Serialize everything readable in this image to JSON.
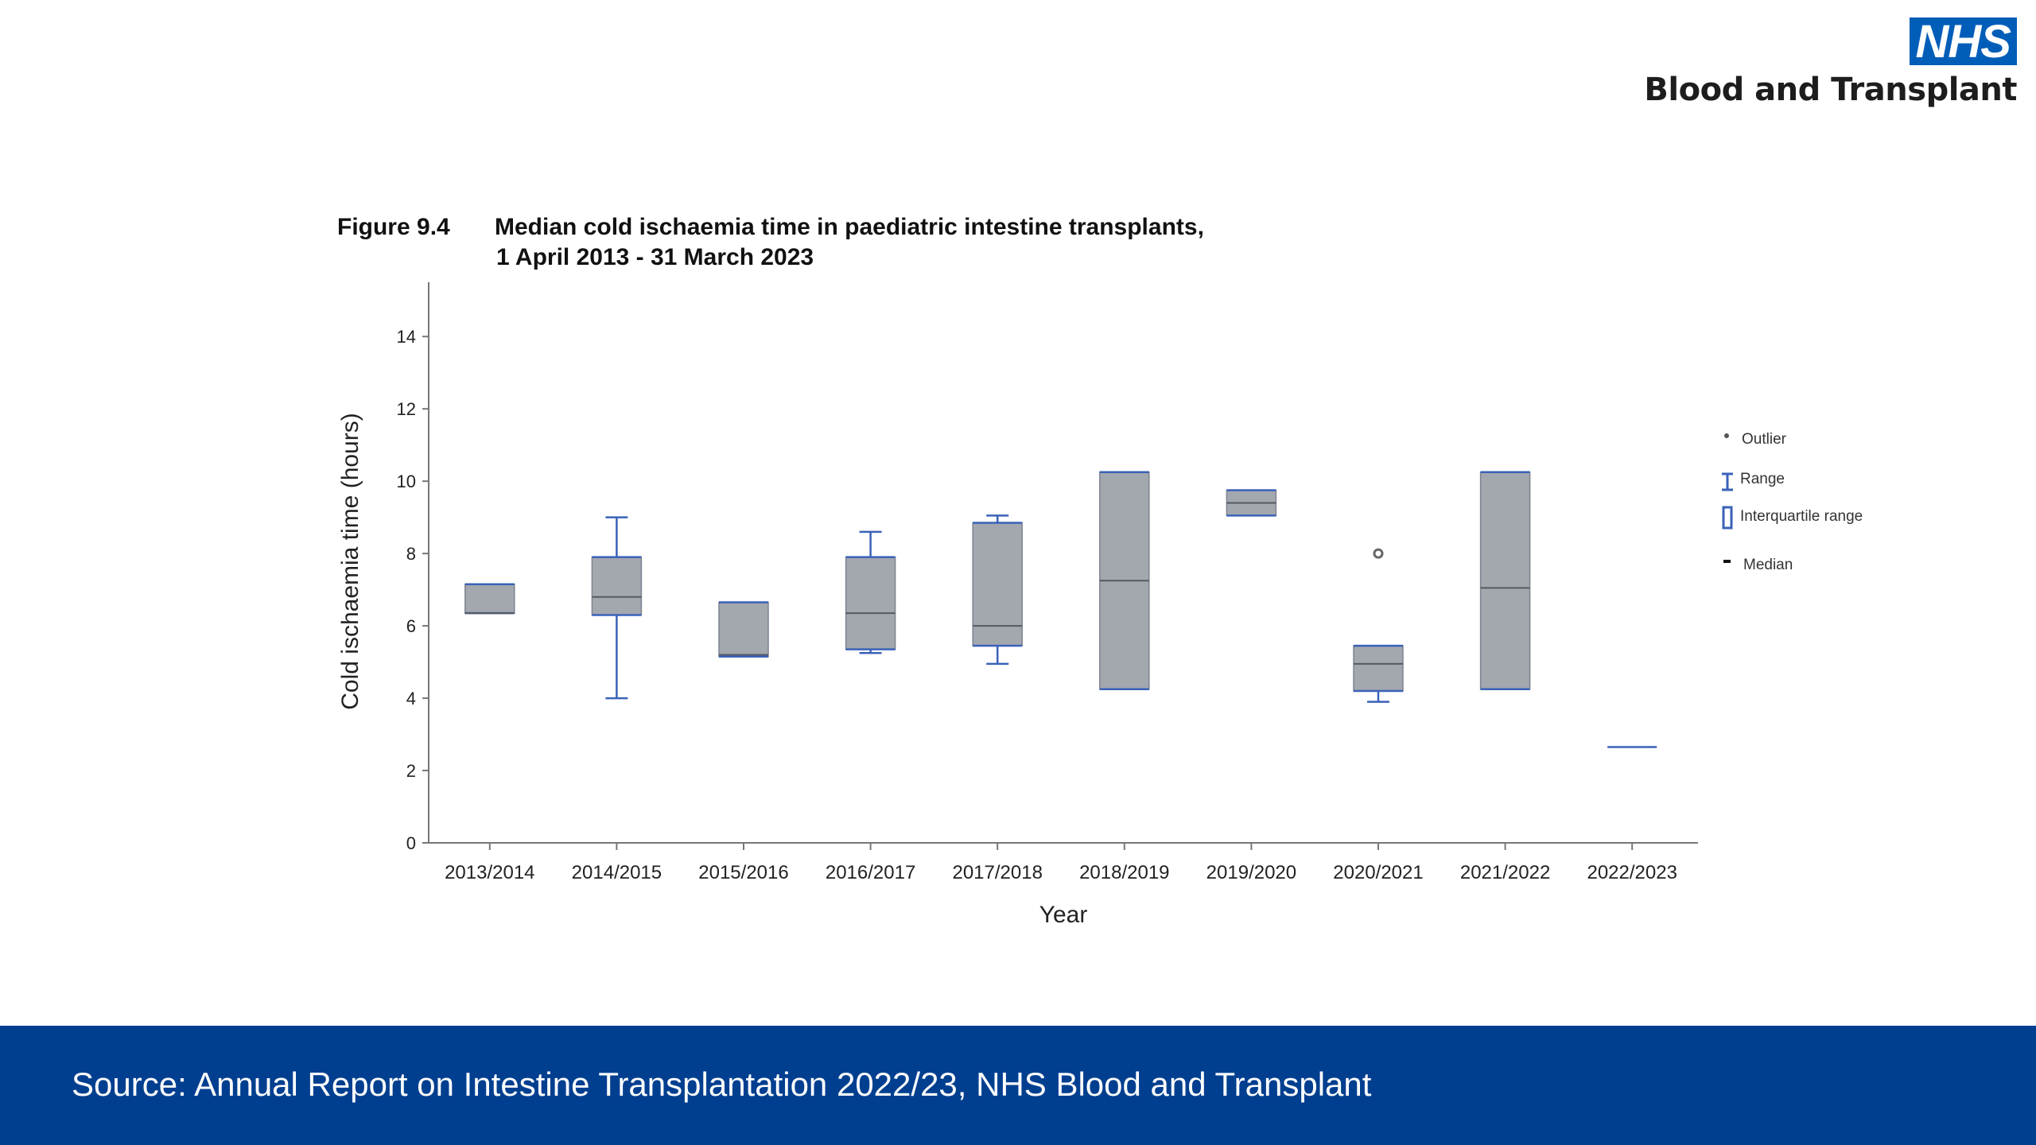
{
  "logo": {
    "nhs": "NHS",
    "text": "Blood and Transplant"
  },
  "figure": {
    "label": "Figure 9.4",
    "title_line1": "Median cold ischaemia time in paediatric intestine transplants,",
    "title_line2": "1 April 2013 - 31 March 2023"
  },
  "legend": {
    "outlier": "Outlier",
    "range": "Range",
    "iqr": "Interquartile range",
    "median": "Median"
  },
  "footer": {
    "source": "Source: Annual Report on Intestine Transplantation 2022/23, NHS Blood and Transplant"
  },
  "colors": {
    "box_fill": "#a3a7ae",
    "box_edge": "#3a62b8",
    "median": "#555a62",
    "footer_bg": "#003f8f",
    "brand": "#005eb8"
  },
  "chart_data": {
    "type": "box",
    "xlabel": "Year",
    "ylabel": "Cold ischaemia time (hours)",
    "ylim": [
      0,
      15.5
    ],
    "yticks": [
      0,
      2,
      4,
      6,
      8,
      10,
      12,
      14
    ],
    "categories": [
      "2013/2014",
      "2014/2015",
      "2015/2016",
      "2016/2017",
      "2017/2018",
      "2018/2019",
      "2019/2020",
      "2020/2021",
      "2021/2022",
      "2022/2023"
    ],
    "boxes": [
      {
        "min": 6.35,
        "q1": 6.35,
        "median": 6.35,
        "q3": 7.15,
        "max": 7.15
      },
      {
        "min": 4.0,
        "q1": 6.3,
        "median": 6.8,
        "q3": 7.9,
        "max": 9.0
      },
      {
        "min": 5.15,
        "q1": 5.15,
        "median": 5.2,
        "q3": 6.65,
        "max": 6.65
      },
      {
        "min": 5.25,
        "q1": 5.35,
        "median": 6.35,
        "q3": 7.9,
        "max": 8.6
      },
      {
        "min": 4.95,
        "q1": 5.45,
        "median": 6.0,
        "q3": 8.85,
        "max": 9.05
      },
      {
        "min": 4.25,
        "q1": 4.25,
        "median": 7.25,
        "q3": 10.25,
        "max": 10.25
      },
      {
        "min": 9.05,
        "q1": 9.05,
        "median": 9.4,
        "q3": 9.75,
        "max": 9.75
      },
      {
        "min": 3.9,
        "q1": 4.2,
        "median": 4.95,
        "q3": 5.45,
        "max": 5.45,
        "outliers": [
          8.0
        ]
      },
      {
        "min": 4.25,
        "q1": 4.25,
        "median": 7.05,
        "q3": 10.25,
        "max": 10.25
      },
      {
        "min": 2.65,
        "q1": 2.65,
        "median": 2.65,
        "q3": 2.65,
        "max": 2.65
      }
    ]
  }
}
